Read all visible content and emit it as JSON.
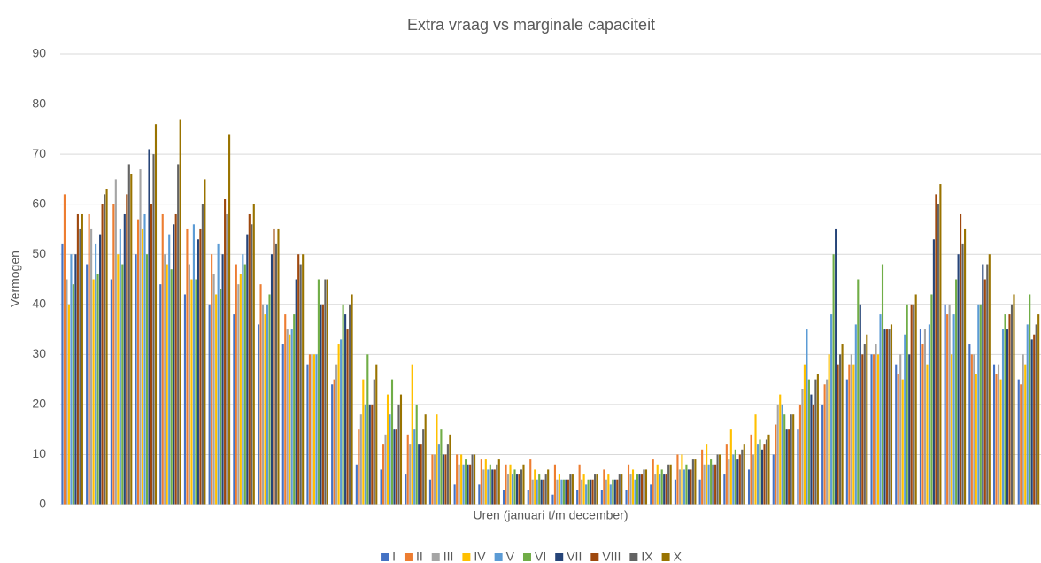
{
  "chart_data": {
    "type": "bar",
    "title": "Extra vraag vs marginale capaciteit",
    "x_label": "Uren (januari t/m december)",
    "y_label": "Vermogen",
    "ylim": [
      0,
      90
    ],
    "yticks": [
      0,
      10,
      20,
      30,
      40,
      50,
      60,
      70,
      80,
      90
    ],
    "grid": true,
    "legend": "bottom",
    "categories": [
      null,
      null,
      null,
      null,
      null,
      null,
      null,
      null,
      null,
      null,
      null,
      null,
      null,
      null,
      null,
      null,
      null,
      null,
      null,
      null,
      null,
      null,
      null,
      null,
      null,
      null,
      null,
      null,
      null,
      null,
      null,
      null,
      null,
      null,
      null,
      null,
      null,
      null,
      null,
      null
    ],
    "series": [
      {
        "name": "I",
        "color": "#4472c4",
        "values": [
          52,
          48,
          45,
          50,
          44,
          42,
          40,
          38,
          36,
          32,
          28,
          24,
          8,
          7,
          6,
          5,
          4,
          4,
          3,
          3,
          2,
          3,
          3,
          3,
          4,
          5,
          5,
          6,
          7,
          10,
          15,
          20,
          25,
          30,
          28,
          35,
          40,
          32,
          28,
          25
        ]
      },
      {
        "name": "II",
        "color": "#ed7d31",
        "values": [
          62,
          58,
          60,
          57,
          58,
          55,
          50,
          48,
          44,
          38,
          30,
          25,
          15,
          12,
          14,
          10,
          10,
          9,
          8,
          9,
          8,
          8,
          7,
          8,
          9,
          10,
          11,
          12,
          14,
          16,
          20,
          24,
          28,
          30,
          26,
          32,
          38,
          30,
          26,
          24
        ]
      },
      {
        "name": "III",
        "color": "#a5a5a5",
        "values": [
          45,
          55,
          65,
          67,
          50,
          48,
          46,
          44,
          40,
          35,
          30,
          28,
          18,
          14,
          12,
          10,
          8,
          7,
          6,
          5,
          5,
          5,
          5,
          6,
          6,
          7,
          8,
          9,
          10,
          20,
          23,
          25,
          30,
          32,
          30,
          35,
          40,
          30,
          28,
          30
        ]
      },
      {
        "name": "IV",
        "color": "#ffc000",
        "values": [
          40,
          45,
          50,
          55,
          48,
          45,
          42,
          46,
          38,
          34,
          30,
          32,
          25,
          22,
          28,
          18,
          10,
          9,
          8,
          7,
          6,
          6,
          6,
          7,
          8,
          10,
          12,
          15,
          18,
          22,
          28,
          30,
          28,
          30,
          25,
          28,
          30,
          26,
          25,
          28
        ]
      },
      {
        "name": "V",
        "color": "#5b9bd5",
        "values": [
          50,
          52,
          55,
          58,
          54,
          56,
          52,
          50,
          40,
          35,
          30,
          33,
          20,
          18,
          15,
          12,
          8,
          7,
          6,
          5,
          5,
          4,
          4,
          5,
          6,
          7,
          8,
          10,
          12,
          20,
          35,
          38,
          36,
          38,
          34,
          36,
          38,
          40,
          35,
          36
        ]
      },
      {
        "name": "VI",
        "color": "#70ad47",
        "values": [
          44,
          46,
          48,
          50,
          47,
          45,
          43,
          48,
          42,
          38,
          45,
          40,
          30,
          25,
          20,
          15,
          9,
          8,
          7,
          6,
          5,
          5,
          5,
          6,
          7,
          8,
          9,
          11,
          13,
          18,
          25,
          50,
          45,
          48,
          40,
          42,
          45,
          40,
          38,
          42
        ]
      },
      {
        "name": "VII",
        "color": "#264478",
        "values": [
          50,
          54,
          58,
          71,
          56,
          53,
          50,
          54,
          50,
          45,
          40,
          38,
          20,
          15,
          12,
          10,
          8,
          7,
          6,
          5,
          5,
          5,
          5,
          6,
          6,
          7,
          8,
          9,
          11,
          15,
          22,
          55,
          40,
          35,
          30,
          53,
          50,
          48,
          35,
          33
        ]
      },
      {
        "name": "VIII",
        "color": "#9e480e",
        "values": [
          58,
          60,
          62,
          60,
          58,
          55,
          61,
          58,
          55,
          50,
          40,
          35,
          20,
          15,
          12,
          10,
          8,
          7,
          6,
          5,
          5,
          5,
          5,
          6,
          6,
          7,
          8,
          10,
          12,
          15,
          20,
          28,
          30,
          35,
          40,
          62,
          58,
          45,
          38,
          34
        ]
      },
      {
        "name": "IX",
        "color": "#636363",
        "values": [
          55,
          62,
          68,
          70,
          68,
          60,
          58,
          56,
          52,
          48,
          45,
          40,
          25,
          20,
          15,
          12,
          10,
          8,
          7,
          6,
          6,
          6,
          6,
          7,
          8,
          9,
          10,
          11,
          13,
          18,
          25,
          30,
          32,
          35,
          40,
          60,
          52,
          48,
          40,
          36
        ]
      },
      {
        "name": "X",
        "color": "#997300",
        "values": [
          58,
          63,
          66,
          76,
          77,
          65,
          74,
          60,
          55,
          50,
          45,
          42,
          28,
          22,
          18,
          14,
          10,
          9,
          8,
          7,
          6,
          6,
          6,
          7,
          8,
          9,
          10,
          12,
          14,
          18,
          26,
          32,
          34,
          36,
          42,
          64,
          55,
          50,
          42,
          38
        ]
      }
    ]
  }
}
